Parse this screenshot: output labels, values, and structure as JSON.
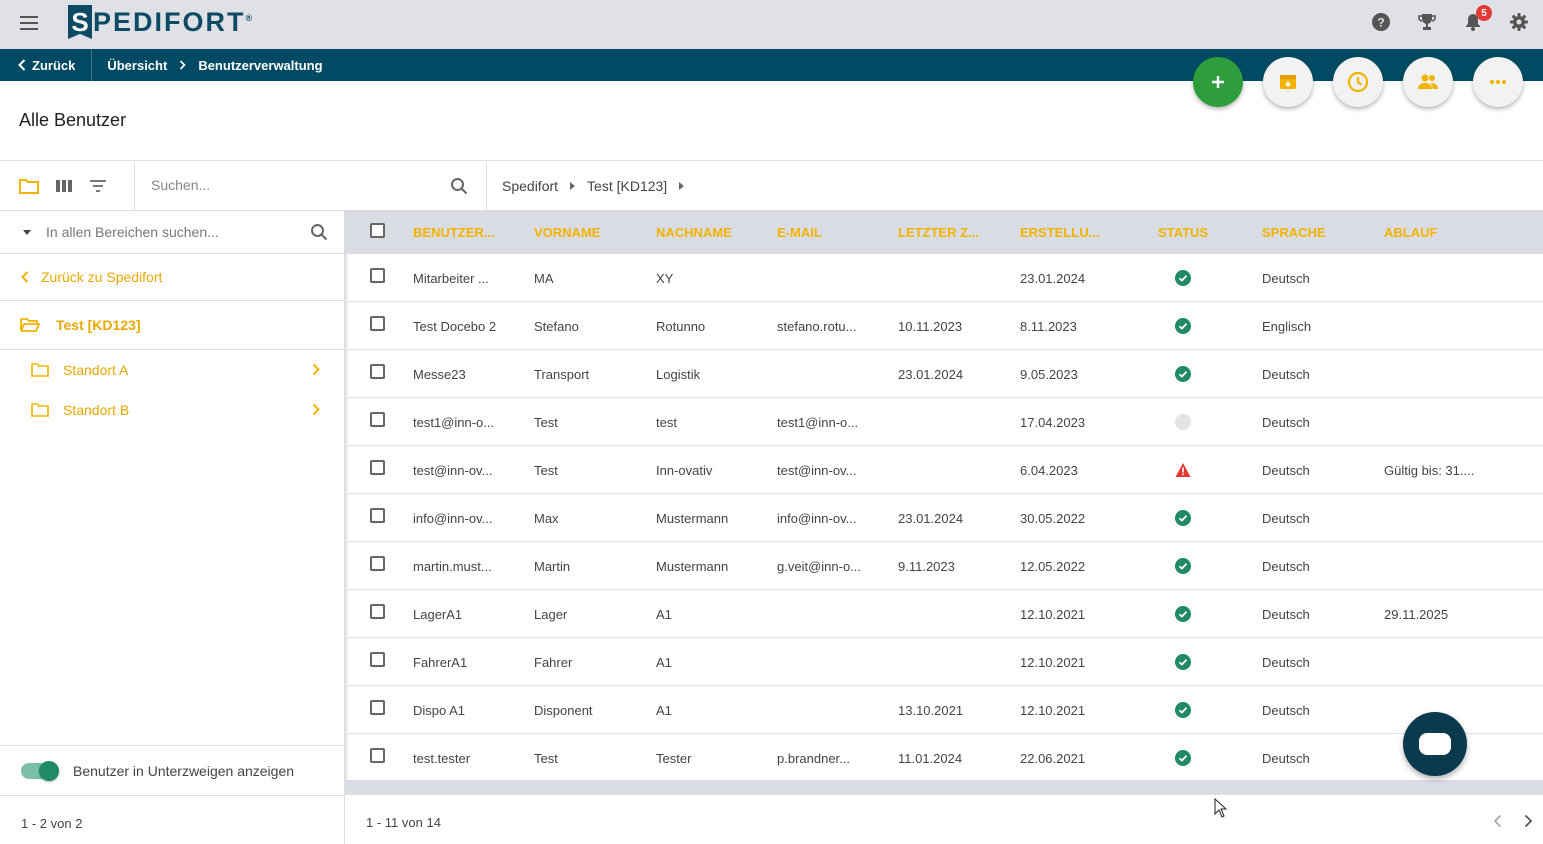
{
  "topbar": {
    "logo_letter": "S",
    "logo_text": "PEDIFORT",
    "logo_mark": "®",
    "icons": [
      "help-icon",
      "trophy-icon",
      "bell-icon",
      "gear-icon"
    ],
    "notification_count": "5"
  },
  "navbar": {
    "back_label": "Zurück",
    "crumbs": [
      "Übersicht",
      "Benutzerverwaltung"
    ]
  },
  "page_title": "Alle Benutzer",
  "toolbar": {
    "search_placeholder": "Suchen...",
    "breadcrumb": [
      "Spedifort",
      "Test [KD123]"
    ]
  },
  "sidebar": {
    "search_placeholder": "In allen Bereichen suchen...",
    "back_label": "Zurück zu Spedifort",
    "current_label": "Test [KD123]",
    "children": [
      "Standort A",
      "Standort B"
    ],
    "toggle_label": "Benutzer in Unterzweigen anzeigen",
    "footer": "1 - 2 von 2"
  },
  "table": {
    "headers": [
      "Benutzer...",
      "Vorname",
      "Nachname",
      "E-Mail",
      "Letzter Z...",
      "Erstellu...",
      "Status",
      "Sprache",
      "Ablauf"
    ],
    "rows": [
      {
        "user": "Mitarbeiter ...",
        "first": "MA",
        "last": "XY",
        "email": "",
        "last_login": "",
        "created": "23.01.2024",
        "status": "ok",
        "lang": "Deutsch",
        "expiry": ""
      },
      {
        "user": "Test Docebo 2",
        "first": "Stefano",
        "last": "Rotunno",
        "email": "stefano.rotu...",
        "last_login": "10.11.2023",
        "created": "8.11.2023",
        "status": "ok",
        "lang": "Englisch",
        "expiry": ""
      },
      {
        "user": "Messe23",
        "first": "Transport",
        "last": "Logistik",
        "email": "",
        "last_login": "23.01.2024",
        "created": "9.05.2023",
        "status": "ok",
        "lang": "Deutsch",
        "expiry": ""
      },
      {
        "user": "test1@inn-o...",
        "first": "Test",
        "last": "test",
        "email": "test1@inn-o...",
        "last_login": "",
        "created": "17.04.2023",
        "status": "inactive",
        "lang": "Deutsch",
        "expiry": ""
      },
      {
        "user": "test@inn-ov...",
        "first": "Test",
        "last": "Inn-ovativ",
        "email": "test@inn-ov...",
        "last_login": "",
        "created": "6.04.2023",
        "status": "warning",
        "lang": "Deutsch",
        "expiry": "Gültig bis: 31...."
      },
      {
        "user": "info@inn-ov...",
        "first": "Max",
        "last": "Mustermann",
        "email": "info@inn-ov...",
        "last_login": "23.01.2024",
        "created": "30.05.2022",
        "status": "ok",
        "lang": "Deutsch",
        "expiry": ""
      },
      {
        "user": "martin.must...",
        "first": "Martin",
        "last": "Mustermann",
        "email": "g.veit@inn-o...",
        "last_login": "9.11.2023",
        "created": "12.05.2022",
        "status": "ok",
        "lang": "Deutsch",
        "expiry": ""
      },
      {
        "user": "LagerA1",
        "first": "Lager",
        "last": "A1",
        "email": "",
        "last_login": "",
        "created": "12.10.2021",
        "status": "ok",
        "lang": "Deutsch",
        "expiry": "29.11.2025"
      },
      {
        "user": "FahrerA1",
        "first": "Fahrer",
        "last": "A1",
        "email": "",
        "last_login": "",
        "created": "12.10.2021",
        "status": "ok",
        "lang": "Deutsch",
        "expiry": ""
      },
      {
        "user": "Dispo A1",
        "first": "Disponent",
        "last": "A1",
        "email": "",
        "last_login": "13.10.2021",
        "created": "12.10.2021",
        "status": "ok",
        "lang": "Deutsch",
        "expiry": ""
      },
      {
        "user": "test.tester",
        "first": "Test",
        "last": "Tester",
        "email": "p.brandner...",
        "last_login": "11.01.2024",
        "created": "22.06.2021",
        "status": "ok",
        "lang": "Deutsch",
        "expiry": ""
      }
    ],
    "footer": "1 - 11 von 14"
  },
  "colors": {
    "accent": "#f2b300",
    "nav": "#004b63",
    "ok": "#1e8a66",
    "warning": "#e53935",
    "fab_green": "#2e9e3c"
  }
}
